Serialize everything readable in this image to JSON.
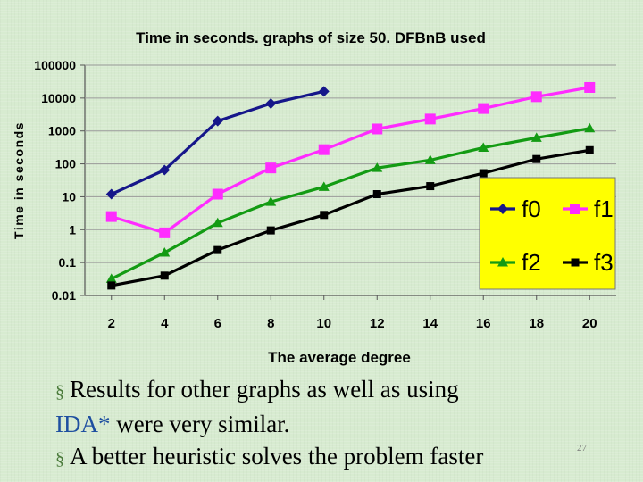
{
  "chart_data": {
    "type": "line",
    "title": "Time in seconds. graphs of size 50. DFBnB used",
    "xlabel": "The average degree",
    "ylabel": "Time in seconds",
    "yscale": "log",
    "ylim": [
      0.01,
      100000
    ],
    "y_ticks": [
      "100000",
      "10000",
      "1000",
      "100",
      "10",
      "1",
      "0.1",
      "0.01"
    ],
    "x_ticks": [
      "2",
      "4",
      "6",
      "8",
      "10",
      "12",
      "14",
      "16",
      "18",
      "20"
    ],
    "x": [
      2,
      4,
      6,
      8,
      10,
      12,
      14,
      16,
      18,
      20
    ],
    "legend_position": "right",
    "series": [
      {
        "name": "f0",
        "color": "#16168a",
        "marker": "diamond",
        "values": [
          12,
          65,
          2000,
          6800,
          16000,
          null,
          null,
          null,
          null,
          null
        ]
      },
      {
        "name": "f1",
        "color": "#ff2bff",
        "marker": "square",
        "values": [
          2.5,
          0.8,
          12,
          75,
          270,
          1150,
          2300,
          4800,
          11000,
          21000
        ]
      },
      {
        "name": "f2",
        "color": "#139b13",
        "marker": "triangle",
        "values": [
          0.032,
          0.2,
          1.6,
          7,
          20,
          75,
          130,
          310,
          620,
          1200
        ]
      },
      {
        "name": "f3",
        "color": "#000000",
        "marker": "square",
        "values": [
          0.02,
          0.04,
          0.24,
          0.95,
          2.8,
          12,
          21,
          52,
          140,
          260
        ]
      }
    ],
    "legend_bg": "#ffff00"
  },
  "text": {
    "bullet1_line1": "Results for other graphs as well as using",
    "bullet1_ida": "IDA*",
    "bullet1_line2": " were very similar.",
    "bullet2": "A better heuristic solves the problem  faster",
    "slide_number": "27",
    "bullet_symbol": "§"
  }
}
